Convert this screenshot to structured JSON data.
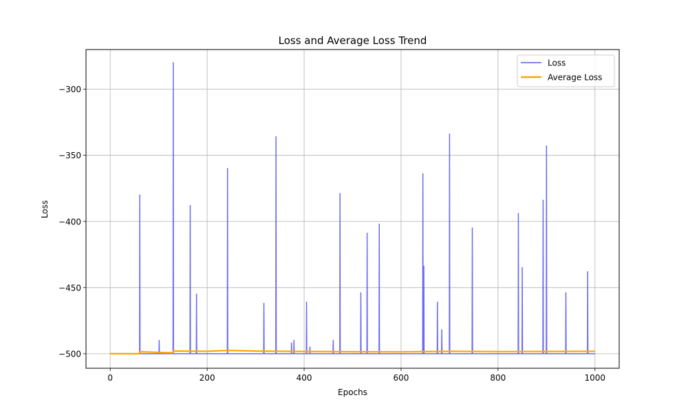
{
  "chart_data": {
    "type": "line",
    "title": "Loss and Average Loss Trend",
    "xlabel": "Epochs",
    "ylabel": "Loss",
    "xlim": [
      -50,
      1050
    ],
    "ylim": [
      -511,
      -270
    ],
    "xticks": [
      0,
      200,
      400,
      600,
      800,
      1000
    ],
    "xtick_labels": [
      "0",
      "200",
      "400",
      "600",
      "800",
      "1000"
    ],
    "yticks": [
      -300,
      -350,
      -400,
      -450,
      -500
    ],
    "ytick_labels": [
      "−300",
      "−350",
      "−400",
      "−450",
      "−500"
    ],
    "grid": true,
    "legend_position": "top-right",
    "series": [
      {
        "name": "Loss",
        "color": "#5b5bf0",
        "baseline": -500,
        "x_range": [
          0,
          1000
        ],
        "spikes": [
          {
            "x": 61,
            "y": -380
          },
          {
            "x": 101,
            "y": -490
          },
          {
            "x": 130,
            "y": -280
          },
          {
            "x": 165,
            "y": -388
          },
          {
            "x": 178,
            "y": -455
          },
          {
            "x": 242,
            "y": -360
          },
          {
            "x": 317,
            "y": -462
          },
          {
            "x": 342,
            "y": -336
          },
          {
            "x": 374,
            "y": -492
          },
          {
            "x": 379,
            "y": -490
          },
          {
            "x": 405,
            "y": -461
          },
          {
            "x": 412,
            "y": -495
          },
          {
            "x": 460,
            "y": -490
          },
          {
            "x": 474,
            "y": -379
          },
          {
            "x": 517,
            "y": -454
          },
          {
            "x": 530,
            "y": -409
          },
          {
            "x": 555,
            "y": -402
          },
          {
            "x": 645,
            "y": -364
          },
          {
            "x": 647,
            "y": -434
          },
          {
            "x": 675,
            "y": -461
          },
          {
            "x": 684,
            "y": -482
          },
          {
            "x": 700,
            "y": -334
          },
          {
            "x": 747,
            "y": -405
          },
          {
            "x": 842,
            "y": -394
          },
          {
            "x": 850,
            "y": -435
          },
          {
            "x": 893,
            "y": -384
          },
          {
            "x": 900,
            "y": -343
          },
          {
            "x": 940,
            "y": -454
          },
          {
            "x": 985,
            "y": -438
          }
        ]
      },
      {
        "name": "Average Loss",
        "color": "#ffa500",
        "x": [
          0,
          60,
          61,
          100,
          129,
          130,
          200,
          242,
          300,
          400,
          500,
          600,
          700,
          800,
          900,
          1000
        ],
        "y": [
          -500,
          -500,
          -498.5,
          -499,
          -499.3,
          -498,
          -498.2,
          -497.5,
          -498,
          -498.3,
          -498.5,
          -498.6,
          -498.2,
          -498.4,
          -498.3,
          -498.2
        ]
      }
    ]
  }
}
